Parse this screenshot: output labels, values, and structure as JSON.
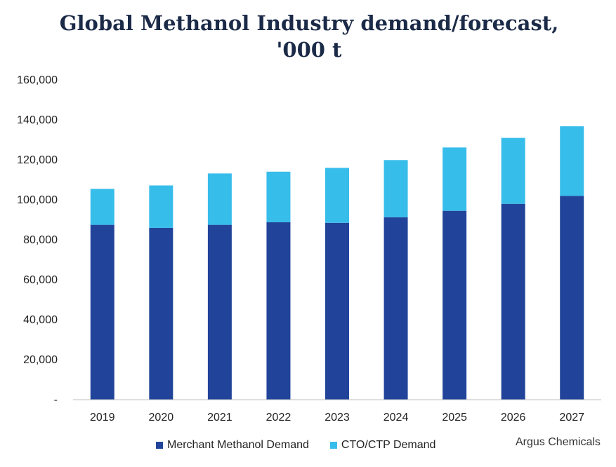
{
  "chart_data": {
    "type": "bar",
    "stacked": true,
    "title": "Global Methanol Industry demand/forecast,",
    "subtitle": "'000 t",
    "categories": [
      "2019",
      "2020",
      "2021",
      "2022",
      "2023",
      "2024",
      "2025",
      "2026",
      "2027"
    ],
    "series": [
      {
        "name": "Merchant Methanol Demand",
        "color": "#21449a",
        "values": [
          87500,
          86000,
          87500,
          88800,
          88500,
          91300,
          94500,
          98000,
          102000
        ]
      },
      {
        "name": "CTO/CTP Demand",
        "color": "#37bdea",
        "values": [
          18000,
          21200,
          25700,
          25300,
          27500,
          28600,
          31700,
          33000,
          34800
        ]
      }
    ],
    "ylim": [
      0,
      160000
    ],
    "yticks": [
      "-",
      "20,000",
      "40,000",
      "60,000",
      "80,000",
      "100,000",
      "120,000",
      "140,000",
      "160,000"
    ],
    "grid": false,
    "legend_position": "bottom"
  },
  "source": "Argus Chemicals"
}
